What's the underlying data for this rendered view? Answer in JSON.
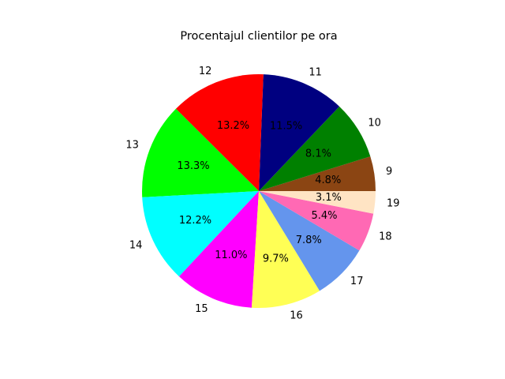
{
  "chart_data": {
    "type": "pie",
    "title": "Procentajul clientilor pe ora",
    "slices": [
      {
        "label": "9",
        "value": 4.8,
        "pct_text": "4.8%",
        "color": "#8B4513"
      },
      {
        "label": "10",
        "value": 8.1,
        "pct_text": "8.1%",
        "color": "#008000"
      },
      {
        "label": "11",
        "value": 11.5,
        "pct_text": "11.5%",
        "color": "#000080"
      },
      {
        "label": "12",
        "value": 13.2,
        "pct_text": "13.2%",
        "color": "#FF0000"
      },
      {
        "label": "13",
        "value": 13.3,
        "pct_text": "13.3%",
        "color": "#00FF00"
      },
      {
        "label": "14",
        "value": 12.2,
        "pct_text": "12.2%",
        "color": "#00FFFF"
      },
      {
        "label": "15",
        "value": 11.0,
        "pct_text": "11.0%",
        "color": "#FF00FF"
      },
      {
        "label": "16",
        "value": 9.7,
        "pct_text": "9.7%",
        "color": "#FFFF55"
      },
      {
        "label": "17",
        "value": 7.8,
        "pct_text": "7.8%",
        "color": "#6495ED"
      },
      {
        "label": "18",
        "value": 5.4,
        "pct_text": "5.4%",
        "color": "#FF69B4"
      },
      {
        "label": "19",
        "value": 3.1,
        "pct_text": "3.1%",
        "color": "#FFE4C4"
      }
    ]
  }
}
